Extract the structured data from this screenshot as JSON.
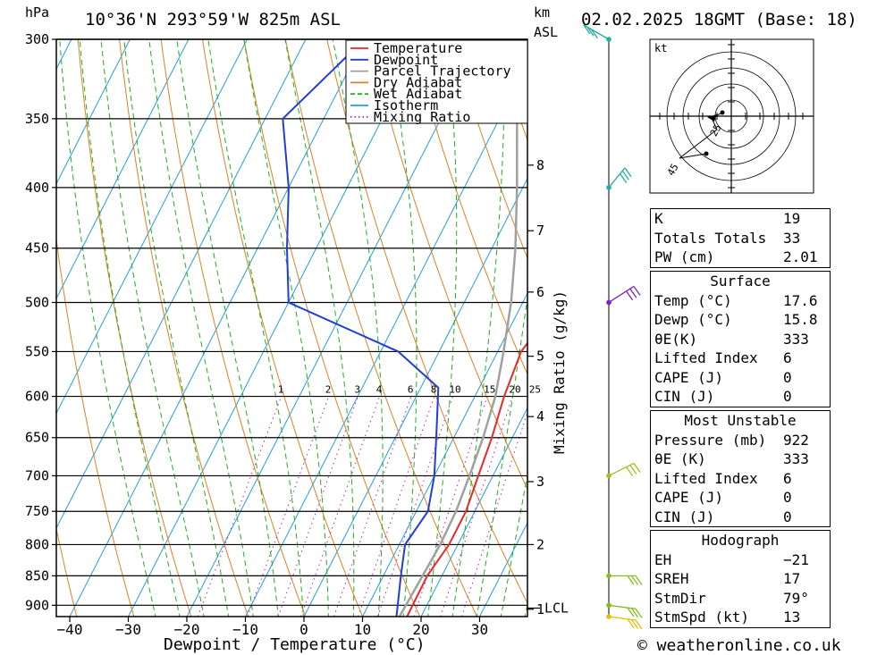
{
  "header": {
    "left_unit": "hPa",
    "location": "10°36'N  293°59'W  825m  ASL",
    "km_unit": "km",
    "km_sub": "ASL",
    "datetime": "02.02.2025  18GMT  (Base: 18)"
  },
  "footer": {
    "copyright": "© weatheronline.co.uk"
  },
  "legend": [
    {
      "label": "Temperature",
      "color": "#e8282a",
      "style": "solid"
    },
    {
      "label": "Dewpoint",
      "color": "#1f3fd8",
      "style": "solid"
    },
    {
      "label": "Parcel Trajectory",
      "color": "#a0a0a0",
      "style": "solid"
    },
    {
      "label": "Dry Adiabat",
      "color": "#e08020",
      "style": "solid"
    },
    {
      "label": "Wet Adiabat",
      "color": "#20b020",
      "style": "dashed"
    },
    {
      "label": "Isotherm",
      "color": "#20a0e0",
      "style": "solid"
    },
    {
      "label": "Mixing Ratio",
      "color": "#c020c0",
      "style": "dotted"
    }
  ],
  "chart_data": {
    "type": "line",
    "xlabel": "Dewpoint / Temperature (°C)",
    "ylabel": "hPa",
    "y2label": "Mixing Ratio (g/kg)",
    "pressure_levels": [
      300,
      350,
      400,
      450,
      500,
      550,
      600,
      650,
      700,
      750,
      800,
      850,
      900
    ],
    "pressure_labels": [
      "300",
      "350",
      "400",
      "450",
      "500",
      "550",
      "600",
      "650",
      "700",
      "750",
      "800",
      "850",
      "900"
    ],
    "x_ticks": [
      -40,
      -30,
      -20,
      -10,
      0,
      10,
      20,
      30
    ],
    "x_tick_labels": [
      "−40",
      "−30",
      "−20",
      "−10",
      "0",
      "10",
      "20",
      "30"
    ],
    "km_ticks": [
      {
        "km": 1,
        "label": "1",
        "p": 907
      },
      {
        "km": 2,
        "label": "2",
        "p": 800
      },
      {
        "km": 3,
        "label": "3",
        "p": 708
      },
      {
        "km": 4,
        "label": "4",
        "p": 624
      },
      {
        "km": 5,
        "label": "5",
        "p": 555
      },
      {
        "km": 6,
        "label": "6",
        "p": 490
      },
      {
        "km": 7,
        "label": "7",
        "p": 435
      },
      {
        "km": 8,
        "label": "8",
        "p": 383
      }
    ],
    "lcl_label": "LCL",
    "lcl_p": 905,
    "mixing_ratio_labels": [
      "1",
      "2",
      "3",
      "4",
      "6",
      "8",
      "10",
      "15",
      "20",
      "25"
    ],
    "series": [
      {
        "name": "Temperature",
        "color": "#e8282a",
        "points": [
          [
            300,
            -6
          ],
          [
            350,
            -2
          ],
          [
            380,
            4
          ],
          [
            420,
            10.5
          ],
          [
            450,
            14.5
          ],
          [
            500,
            16
          ],
          [
            550,
            14
          ],
          [
            600,
            15
          ],
          [
            650,
            16.5
          ],
          [
            700,
            17.5
          ],
          [
            750,
            18.5
          ],
          [
            800,
            18.5
          ],
          [
            850,
            17.5
          ],
          [
            920,
            17.6
          ]
        ]
      },
      {
        "name": "Dewpoint",
        "color": "#1f3fd8",
        "points": [
          [
            300,
            -40
          ],
          [
            350,
            -47
          ],
          [
            400,
            -40
          ],
          [
            450,
            -35
          ],
          [
            500,
            -30
          ],
          [
            550,
            -7
          ],
          [
            590,
            3
          ],
          [
            650,
            7
          ],
          [
            700,
            10
          ],
          [
            750,
            12
          ],
          [
            800,
            11
          ],
          [
            850,
            13
          ],
          [
            920,
            15.8
          ]
        ]
      },
      {
        "name": "Parcel Trajectory",
        "color": "#a0a0a0",
        "points": [
          [
            310,
            -11
          ],
          [
            350,
            -7
          ],
          [
            400,
            -1
          ],
          [
            450,
            4
          ],
          [
            500,
            8
          ],
          [
            550,
            11
          ],
          [
            600,
            13.5
          ],
          [
            650,
            15
          ],
          [
            700,
            16
          ],
          [
            750,
            16.8
          ],
          [
            800,
            17
          ],
          [
            850,
            16.7
          ],
          [
            920,
            16.3
          ]
        ]
      }
    ]
  },
  "hodograph": {
    "unit": "kt",
    "ring_labels": [
      "25",
      "45"
    ]
  },
  "wind_barbs": [
    {
      "p": 300,
      "color": "#20b0a0"
    },
    {
      "p": 400,
      "color": "#20b0a0"
    },
    {
      "p": 500,
      "color": "#8020c0"
    },
    {
      "p": 700,
      "color": "#a0c020"
    },
    {
      "p": 850,
      "color": "#80c020"
    },
    {
      "p": 900,
      "color": "#80c020"
    },
    {
      "p": 920,
      "color": "#e0c000"
    }
  ],
  "indices": {
    "k_label": "K",
    "k_val": "19",
    "tt_label": "Totals Totals",
    "tt_val": "33",
    "pw_label": "PW (cm)",
    "pw_val": "2.01"
  },
  "surface": {
    "title": "Surface",
    "rows": [
      {
        "label": "Temp (°C)",
        "value": "17.6"
      },
      {
        "label": "Dewp (°C)",
        "value": "15.8"
      },
      {
        "label": "θE(K)",
        "value": "333"
      },
      {
        "label": "Lifted Index",
        "value": "6"
      },
      {
        "label": "CAPE (J)",
        "value": "0"
      },
      {
        "label": "CIN (J)",
        "value": "0"
      }
    ]
  },
  "most_unstable": {
    "title": "Most Unstable",
    "rows": [
      {
        "label": "Pressure (mb)",
        "value": "922"
      },
      {
        "label": "θE (K)",
        "value": "333"
      },
      {
        "label": "Lifted Index",
        "value": "6"
      },
      {
        "label": "CAPE (J)",
        "value": "0"
      },
      {
        "label": "CIN (J)",
        "value": "0"
      }
    ]
  },
  "hodo_table": {
    "title": "Hodograph",
    "rows": [
      {
        "label": "EH",
        "value": "−21"
      },
      {
        "label": "SREH",
        "value": "17"
      },
      {
        "label": "StmDir",
        "value": "79°"
      },
      {
        "label": "StmSpd (kt)",
        "value": "13"
      }
    ]
  }
}
